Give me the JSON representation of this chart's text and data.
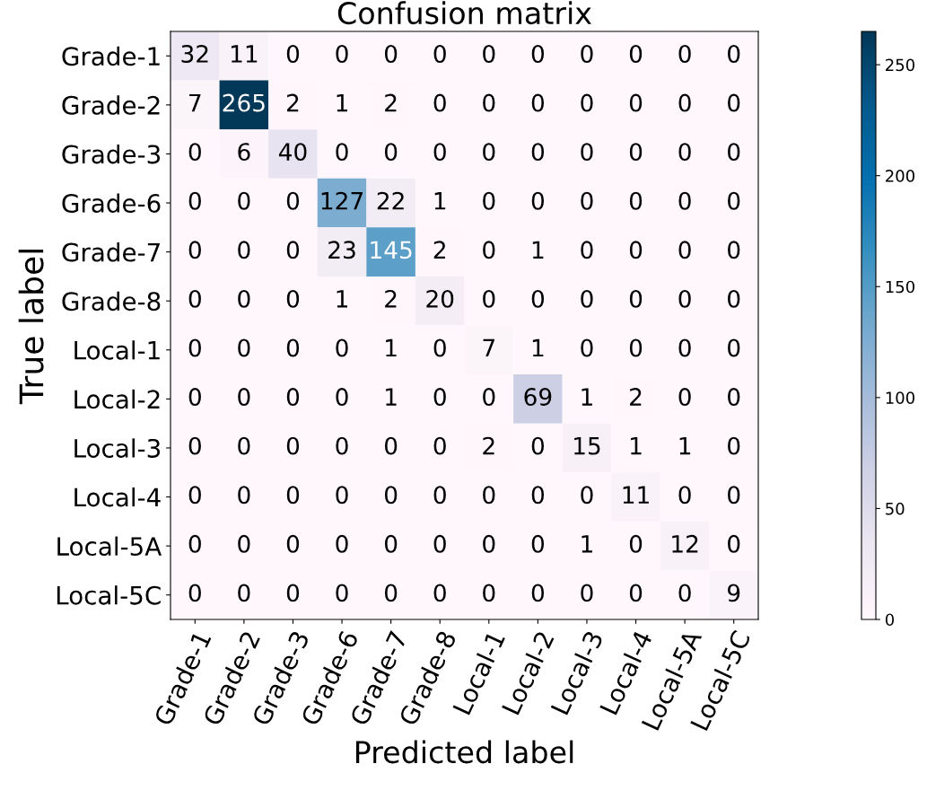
{
  "chart_data": {
    "type": "heatmap",
    "title": "Confusion matrix",
    "xlabel": "Predicted label",
    "ylabel": "True label",
    "categories": [
      "Grade-1",
      "Grade-2",
      "Grade-3",
      "Grade-6",
      "Grade-7",
      "Grade-8",
      "Local-1",
      "Local-2",
      "Local-3",
      "Local-4",
      "Local-5A",
      "Local-5C"
    ],
    "y_categories": [
      "Grade-1",
      "Grade-2",
      "Grade-3",
      "Grade-6",
      "Grade-7",
      "Grade-8",
      "Local-1",
      "Local-2",
      "Local-3",
      "Local-4",
      "Local-5A",
      "Local-5C"
    ],
    "cells": [
      [
        32,
        11,
        0,
        0,
        0,
        0,
        0,
        0,
        0,
        0,
        0,
        0
      ],
      [
        7,
        265,
        2,
        1,
        2,
        0,
        0,
        0,
        0,
        0,
        0,
        0
      ],
      [
        0,
        6,
        40,
        0,
        0,
        0,
        0,
        0,
        0,
        0,
        0,
        0
      ],
      [
        0,
        0,
        0,
        127,
        22,
        1,
        0,
        0,
        0,
        0,
        0,
        0
      ],
      [
        0,
        0,
        0,
        23,
        145,
        2,
        0,
        1,
        0,
        0,
        0,
        0
      ],
      [
        0,
        0,
        0,
        1,
        2,
        20,
        0,
        0,
        0,
        0,
        0,
        0
      ],
      [
        0,
        0,
        0,
        0,
        1,
        0,
        7,
        1,
        0,
        0,
        0,
        0
      ],
      [
        0,
        0,
        0,
        0,
        1,
        0,
        0,
        69,
        1,
        2,
        0,
        0
      ],
      [
        0,
        0,
        0,
        0,
        0,
        0,
        2,
        0,
        15,
        1,
        1,
        0
      ],
      [
        0,
        0,
        0,
        0,
        0,
        0,
        0,
        0,
        0,
        11,
        0,
        0
      ],
      [
        0,
        0,
        0,
        0,
        0,
        0,
        0,
        0,
        1,
        0,
        12,
        0
      ],
      [
        0,
        0,
        0,
        0,
        0,
        0,
        0,
        0,
        0,
        0,
        0,
        9
      ]
    ],
    "data_labels": true,
    "clim": [
      0,
      265
    ],
    "cticks": [
      0,
      50,
      100,
      150,
      200,
      250
    ]
  }
}
